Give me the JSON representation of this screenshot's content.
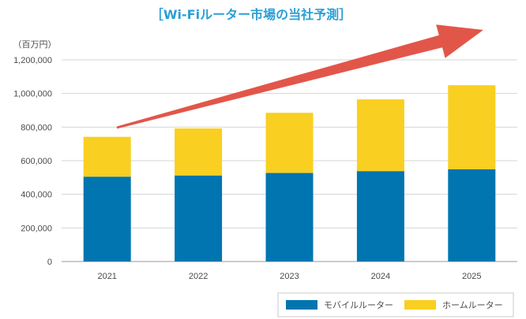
{
  "chart_data": {
    "type": "bar",
    "stacked": true,
    "title": "［Wi-Fiルーター市場の当社予測］",
    "ylabel": "（百万円）",
    "xlabel": "",
    "ylim": [
      0,
      1200000
    ],
    "yticks": [
      0,
      200000,
      400000,
      600000,
      800000,
      1000000,
      1200000
    ],
    "ytick_labels": [
      "0",
      "200,000",
      "400,000",
      "600,000",
      "800,000",
      "1,000,000",
      "1,200,000"
    ],
    "categories": [
      "2021",
      "2022",
      "2023",
      "2024",
      "2025"
    ],
    "series": [
      {
        "name": "モバイルルーター",
        "values": [
          505000,
          512000,
          527000,
          538000,
          549000
        ],
        "color": "#0075b0"
      },
      {
        "name": "ホームルーター",
        "values": [
          237000,
          280000,
          358000,
          427000,
          500000
        ],
        "color": "#f9cf21"
      }
    ],
    "grid": true,
    "legend_position": "bottom-right",
    "annotation": "trend-arrow"
  },
  "colors": {
    "title": "#2a9fd6",
    "arrow": "#e2564a",
    "grid": "#d4d4d4",
    "axis": "#9a9a9a"
  }
}
